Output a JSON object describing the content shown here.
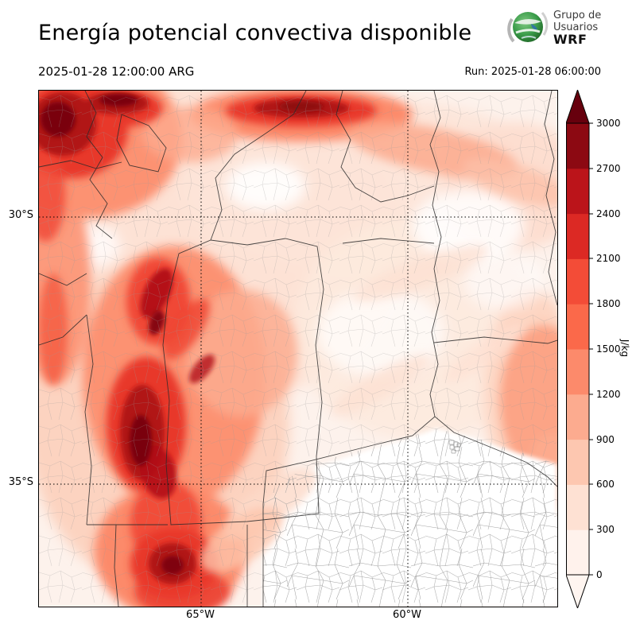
{
  "header": {
    "title": "Energía potencial convectiva disponible",
    "valid_time": "2025-01-28 12:00:00 ARG",
    "run_label": "Run: 2025-01-28 06:00:00",
    "logo": {
      "line1": "Grupo de",
      "line2": "Usuarios",
      "line3": "WRF"
    }
  },
  "map": {
    "lat_ticks": [
      {
        "label": "30°S"
      },
      {
        "label": "35°S"
      }
    ],
    "lon_ticks": [
      {
        "label": "65°W"
      },
      {
        "label": "60°W"
      }
    ]
  },
  "colorbar": {
    "unit": "J/kg",
    "ticks": [
      "3000",
      "2700",
      "2400",
      "2100",
      "1800",
      "1500",
      "1200",
      "900",
      "600",
      "300",
      "0"
    ],
    "levels_bottom_to_top": [
      "#fff2ec",
      "#fee1d3",
      "#fdc7b0",
      "#fcab8f",
      "#fc8a6b",
      "#fb694a",
      "#f34c37",
      "#dc2924",
      "#bb141a",
      "#8c0912"
    ],
    "over_color": "#67000d",
    "under_color": "#fff5f0"
  },
  "chart_data": {
    "type": "heatmap",
    "title": "Energía potencial convectiva disponible",
    "units": "J/kg",
    "colormap": "Reds",
    "levels": [
      0,
      300,
      600,
      900,
      1200,
      1500,
      1800,
      2100,
      2400,
      2700,
      3000
    ],
    "extent": {
      "lat_gridlines": [
        "30°S",
        "35°S"
      ],
      "lon_gridlines": [
        "65°W",
        "60°W"
      ]
    },
    "valid_time": "2025-01-28 12:00:00 ARG",
    "run_time": "2025-01-28 06:00:00",
    "regions_high_cape": [
      {
        "area": "northwest corner (NW Argentina)",
        "approx_value": 3000
      },
      {
        "area": "north-central elongated band",
        "approx_value": 2700
      },
      {
        "area": "central-west (Córdoba / San Luis sierras)",
        "approx_value": 3000
      },
      {
        "area": "south-central / bottom-left lobe",
        "approx_value": 2400
      },
      {
        "area": "southeast (Buenos Aires province)",
        "approx_value": 0
      }
    ]
  }
}
